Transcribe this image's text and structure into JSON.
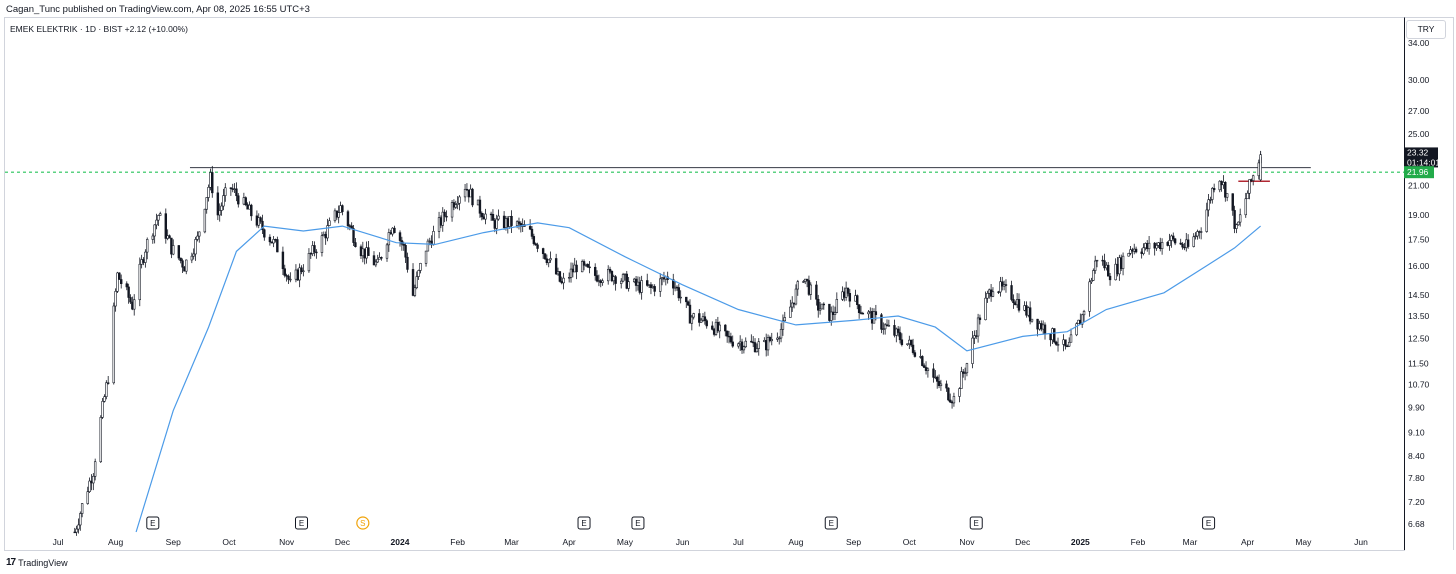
{
  "header": {
    "published": "Cagan_Tunc published on TradingView.com, Apr 08, 2025 16:55 UTC+3"
  },
  "symbol": {
    "line": "EMEK ELEKTRIK · 1D · BIST  +2.12 (+10.00%)"
  },
  "axis": {
    "currency": "TRY"
  },
  "footer": {
    "logo": "17",
    "brand": "TradingView"
  },
  "colors": {
    "candle": "#131722",
    "ma_line": "#4c9be8",
    "resistance_line": "#363a45",
    "support_dashed": "#26c45a",
    "price_badge": "#131722",
    "level_badge": "#22ab4a",
    "entry_line": "#b22833"
  },
  "chart_data": {
    "type": "candlestick",
    "title": "EMEK ELEKTRIK · 1D · BIST",
    "y_scale": "log",
    "ylim": [
      6.5,
      37
    ],
    "y_ticks": [
      "34.00",
      "30.00",
      "27.00",
      "25.00",
      "21.00",
      "19.00",
      "17.50",
      "16.00",
      "14.50",
      "13.50",
      "12.50",
      "11.50",
      "10.70",
      "9.90",
      "9.10",
      "8.40",
      "7.80",
      "7.20",
      "6.68"
    ],
    "x_ticks": [
      {
        "label": "Jul",
        "date": "2023-07-01"
      },
      {
        "label": "Aug",
        "date": "2023-08-01"
      },
      {
        "label": "Sep",
        "date": "2023-09-01"
      },
      {
        "label": "Oct",
        "date": "2023-10-01"
      },
      {
        "label": "Nov",
        "date": "2023-11-01"
      },
      {
        "label": "Dec",
        "date": "2023-12-01"
      },
      {
        "label": "2024",
        "date": "2024-01-01",
        "bold": true
      },
      {
        "label": "Feb",
        "date": "2024-02-01"
      },
      {
        "label": "Mar",
        "date": "2024-03-01"
      },
      {
        "label": "Apr",
        "date": "2024-04-01"
      },
      {
        "label": "May",
        "date": "2024-05-01"
      },
      {
        "label": "Jun",
        "date": "2024-06-01"
      },
      {
        "label": "Jul",
        "date": "2024-07-01"
      },
      {
        "label": "Aug",
        "date": "2024-08-01"
      },
      {
        "label": "Sep",
        "date": "2024-09-01"
      },
      {
        "label": "Oct",
        "date": "2024-10-01"
      },
      {
        "label": "Nov",
        "date": "2024-11-01"
      },
      {
        "label": "Dec",
        "date": "2024-12-01"
      },
      {
        "label": "2025",
        "date": "2025-01-01",
        "bold": true
      },
      {
        "label": "Feb",
        "date": "2025-02-01"
      },
      {
        "label": "Mar",
        "date": "2025-03-01"
      },
      {
        "label": "Apr",
        "date": "2025-04-01"
      },
      {
        "label": "May",
        "date": "2025-05-01"
      },
      {
        "label": "Jun",
        "date": "2025-06-01"
      }
    ],
    "price_series": [
      {
        "date": "2023-07-10",
        "price": 6.5
      },
      {
        "date": "2023-07-20",
        "price": 8.0
      },
      {
        "date": "2023-07-28",
        "price": 11.0
      },
      {
        "date": "2023-08-02",
        "price": 15.5
      },
      {
        "date": "2023-08-10",
        "price": 14.0
      },
      {
        "date": "2023-08-17",
        "price": 17.0
      },
      {
        "date": "2023-08-24",
        "price": 19.0
      },
      {
        "date": "2023-08-31",
        "price": 17.0
      },
      {
        "date": "2023-09-07",
        "price": 16.0
      },
      {
        "date": "2023-09-14",
        "price": 17.5
      },
      {
        "date": "2023-09-21",
        "price": 21.5
      },
      {
        "date": "2023-09-25",
        "price": 19.0
      },
      {
        "date": "2023-10-01",
        "price": 21.0
      },
      {
        "date": "2023-10-10",
        "price": 19.5
      },
      {
        "date": "2023-10-20",
        "price": 18.0
      },
      {
        "date": "2023-10-27",
        "price": 17.0
      },
      {
        "date": "2023-11-03",
        "price": 15.0
      },
      {
        "date": "2023-11-10",
        "price": 16.0
      },
      {
        "date": "2023-11-20",
        "price": 17.5
      },
      {
        "date": "2023-11-30",
        "price": 19.5
      },
      {
        "date": "2023-12-10",
        "price": 17.0
      },
      {
        "date": "2023-12-20",
        "price": 16.0
      },
      {
        "date": "2023-12-28",
        "price": 18.5
      },
      {
        "date": "2024-01-03",
        "price": 17.0
      },
      {
        "date": "2024-01-08",
        "price": 14.5
      },
      {
        "date": "2024-01-15",
        "price": 17.0
      },
      {
        "date": "2024-01-25",
        "price": 19.0
      },
      {
        "date": "2024-02-05",
        "price": 21.0
      },
      {
        "date": "2024-02-12",
        "price": 19.5
      },
      {
        "date": "2024-02-20",
        "price": 18.5
      },
      {
        "date": "2024-03-01",
        "price": 18.5
      },
      {
        "date": "2024-03-10",
        "price": 18.0
      },
      {
        "date": "2024-03-20",
        "price": 16.5
      },
      {
        "date": "2024-03-28",
        "price": 15.0
      },
      {
        "date": "2024-04-05",
        "price": 16.0
      },
      {
        "date": "2024-04-15",
        "price": 15.5
      },
      {
        "date": "2024-04-25",
        "price": 15.5
      },
      {
        "date": "2024-05-05",
        "price": 15.0
      },
      {
        "date": "2024-05-15",
        "price": 14.8
      },
      {
        "date": "2024-05-25",
        "price": 15.5
      },
      {
        "date": "2024-06-05",
        "price": 13.5
      },
      {
        "date": "2024-06-15",
        "price": 13.2
      },
      {
        "date": "2024-06-25",
        "price": 12.5
      },
      {
        "date": "2024-07-05",
        "price": 12.3
      },
      {
        "date": "2024-07-15",
        "price": 12.2
      },
      {
        "date": "2024-07-25",
        "price": 13.0
      },
      {
        "date": "2024-08-05",
        "price": 15.5
      },
      {
        "date": "2024-08-12",
        "price": 14.0
      },
      {
        "date": "2024-08-20",
        "price": 13.5
      },
      {
        "date": "2024-08-28",
        "price": 14.8
      },
      {
        "date": "2024-09-05",
        "price": 13.8
      },
      {
        "date": "2024-09-15",
        "price": 13.2
      },
      {
        "date": "2024-09-25",
        "price": 12.6
      },
      {
        "date": "2024-10-05",
        "price": 12.0
      },
      {
        "date": "2024-10-15",
        "price": 10.8
      },
      {
        "date": "2024-10-25",
        "price": 10.2
      },
      {
        "date": "2024-11-01",
        "price": 11.5
      },
      {
        "date": "2024-11-08",
        "price": 13.5
      },
      {
        "date": "2024-11-15",
        "price": 15.0
      },
      {
        "date": "2024-11-25",
        "price": 14.5
      },
      {
        "date": "2024-12-05",
        "price": 13.5
      },
      {
        "date": "2024-12-15",
        "price": 12.8
      },
      {
        "date": "2024-12-25",
        "price": 12.0
      },
      {
        "date": "2025-01-02",
        "price": 13.5
      },
      {
        "date": "2025-01-10",
        "price": 16.5
      },
      {
        "date": "2025-01-18",
        "price": 15.5
      },
      {
        "date": "2025-01-28",
        "price": 17.0
      },
      {
        "date": "2025-02-08",
        "price": 17.0
      },
      {
        "date": "2025-02-18",
        "price": 17.5
      },
      {
        "date": "2025-02-28",
        "price": 17.0
      },
      {
        "date": "2025-03-08",
        "price": 18.5
      },
      {
        "date": "2025-03-16",
        "price": 22.0
      },
      {
        "date": "2025-03-22",
        "price": 20.0
      },
      {
        "date": "2025-03-26",
        "price": 18.0
      },
      {
        "date": "2025-04-01",
        "price": 20.5
      },
      {
        "date": "2025-04-08",
        "price": 23.32
      }
    ],
    "moving_average": [
      {
        "date": "2023-08-12",
        "value": 6.5
      },
      {
        "date": "2023-09-01",
        "value": 9.8
      },
      {
        "date": "2023-09-20",
        "value": 13.0
      },
      {
        "date": "2023-10-05",
        "value": 16.8
      },
      {
        "date": "2023-10-20",
        "value": 18.3
      },
      {
        "date": "2023-11-10",
        "value": 18.0
      },
      {
        "date": "2023-12-01",
        "value": 18.3
      },
      {
        "date": "2023-12-30",
        "value": 17.3
      },
      {
        "date": "2024-01-20",
        "value": 17.2
      },
      {
        "date": "2024-02-15",
        "value": 17.9
      },
      {
        "date": "2024-03-15",
        "value": 18.5
      },
      {
        "date": "2024-04-01",
        "value": 18.2
      },
      {
        "date": "2024-05-01",
        "value": 16.5
      },
      {
        "date": "2024-06-01",
        "value": 15.0
      },
      {
        "date": "2024-07-01",
        "value": 13.8
      },
      {
        "date": "2024-08-01",
        "value": 13.1
      },
      {
        "date": "2024-09-01",
        "value": 13.3
      },
      {
        "date": "2024-09-25",
        "value": 13.5
      },
      {
        "date": "2024-10-15",
        "value": 13.0
      },
      {
        "date": "2024-11-01",
        "value": 12.0
      },
      {
        "date": "2024-12-01",
        "value": 12.6
      },
      {
        "date": "2024-12-25",
        "value": 12.8
      },
      {
        "date": "2025-01-15",
        "value": 13.8
      },
      {
        "date": "2025-02-15",
        "value": 14.6
      },
      {
        "date": "2025-03-10",
        "value": 16.0
      },
      {
        "date": "2025-03-25",
        "value": 17.0
      },
      {
        "date": "2025-04-08",
        "value": 18.3
      }
    ],
    "levels": {
      "resistance": {
        "value": 22.3,
        "start": "2023-09-10",
        "end": "2025-05-05"
      },
      "support_dashed": {
        "value": 21.96
      },
      "entry": {
        "value": 21.3,
        "start": "2025-03-27",
        "end": "2025-04-13"
      }
    },
    "price_badge": {
      "price": "23.32",
      "countdown": "01:14:01"
    },
    "level_badge": "21.96",
    "events": [
      {
        "date": "2023-08-21",
        "label": "E"
      },
      {
        "date": "2023-11-09",
        "label": "E"
      },
      {
        "date": "2023-12-12",
        "label": "S"
      },
      {
        "date": "2024-04-09",
        "label": "E"
      },
      {
        "date": "2024-05-08",
        "label": "E"
      },
      {
        "date": "2024-08-20",
        "label": "E"
      },
      {
        "date": "2024-11-06",
        "label": "E"
      },
      {
        "date": "2025-03-11",
        "label": "E"
      }
    ]
  }
}
